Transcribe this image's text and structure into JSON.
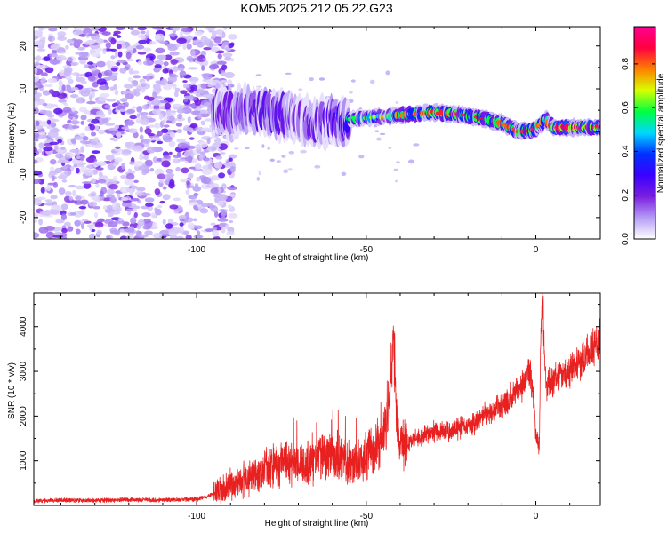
{
  "title": "KOM5.2025.212.05.22.G23",
  "chart_data": [
    {
      "type": "heatmap",
      "xlabel": "Height of straight line (km)",
      "ylabel": "Frequency (Hz)",
      "xlim": [
        -148,
        19
      ],
      "ylim": [
        -25,
        24.5
      ],
      "x_ticks": [
        -100,
        -50,
        0
      ],
      "x_tick_labels": [
        "-100",
        "-50",
        "0"
      ],
      "y_ticks": [
        -20,
        -10,
        0,
        10,
        20
      ],
      "y_tick_labels": [
        "-20",
        "-10",
        "0",
        "10",
        "20"
      ],
      "colorbar": {
        "label": "Normalized spectral amplitude",
        "range": [
          0,
          0.97
        ],
        "ticks": [
          0.0,
          0.2,
          0.4,
          0.6,
          0.8
        ],
        "tick_labels": [
          "0.0",
          "0.2",
          "0.4",
          "0.6",
          "0.8"
        ],
        "colors": [
          "#ffffff",
          "#b59cf5",
          "#7a1fe0",
          "#3a00ff",
          "#0030ff",
          "#00d8ff",
          "#00ff40",
          "#d8ff00",
          "#ff8000",
          "#ff0040",
          "#ff0090"
        ]
      },
      "noise_region": {
        "x_range": [
          -148,
          -93
        ],
        "freq_range": [
          -25,
          24.5
        ],
        "mean_amplitude": 0.1
      },
      "ridge": {
        "x": [
          -95,
          -85,
          -78,
          -70,
          -65,
          -55,
          -45,
          -38,
          -30,
          -22,
          -15,
          -10,
          -5,
          0,
          3,
          5,
          10,
          15,
          19
        ],
        "freq": [
          5,
          5,
          4.5,
          3.5,
          1.5,
          3,
          3.5,
          4,
          4.5,
          4,
          3,
          2,
          0,
          0.5,
          3,
          1,
          1,
          1,
          1
        ],
        "amplitude": [
          0.35,
          0.4,
          0.45,
          0.35,
          0.4,
          0.55,
          0.7,
          0.8,
          0.85,
          0.85,
          0.85,
          0.8,
          0.85,
          0.85,
          0.7,
          0.9,
          0.92,
          0.92,
          0.9
        ]
      },
      "grid": false
    },
    {
      "type": "line",
      "xlabel": "Height of straight line (km)",
      "ylabel": "SNR (10 * v/v)",
      "xlim": [
        -148,
        19
      ],
      "ylim": [
        0,
        4750
      ],
      "x_ticks": [
        -100,
        -50,
        0
      ],
      "x_tick_labels": [
        "-100",
        "-50",
        "0"
      ],
      "y_ticks": [
        1000,
        2000,
        3000,
        4000
      ],
      "y_tick_labels": [
        "1000",
        "2000",
        "3000",
        "4000"
      ],
      "color": "#e82020",
      "grid": false,
      "series": [
        {
          "x": [
            -148,
            -140,
            -130,
            -120,
            -110,
            -100,
            -95,
            -90,
            -85,
            -80,
            -76,
            -72,
            -68,
            -64,
            -60,
            -56,
            -52,
            -48,
            -45,
            -43,
            -42,
            -41,
            -40,
            -38,
            -35,
            -30,
            -25,
            -20,
            -15,
            -10,
            -6,
            -4,
            -2,
            -1,
            0,
            1,
            1.5,
            2,
            3,
            4,
            6,
            10,
            14,
            19
          ],
          "y": [
            100,
            120,
            110,
            130,
            120,
            140,
            250,
            450,
            600,
            800,
            900,
            1000,
            900,
            1100,
            1100,
            1000,
            1000,
            1200,
            1500,
            2200,
            3800,
            1800,
            1500,
            1400,
            1500,
            1650,
            1700,
            1750,
            2050,
            2200,
            2500,
            2700,
            3000,
            2700,
            1600,
            1300,
            3800,
            4600,
            2600,
            2700,
            2900,
            3000,
            3300,
            3750
          ]
        }
      ]
    }
  ]
}
